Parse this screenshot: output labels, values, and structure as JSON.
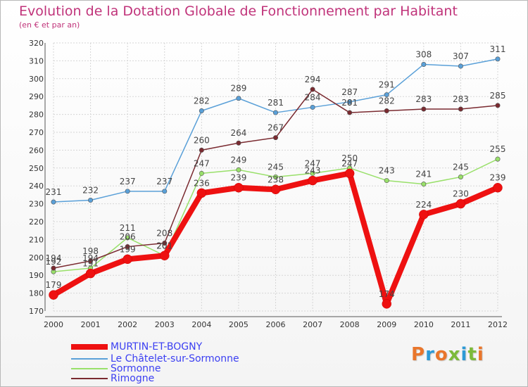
{
  "header": {
    "title": "Evolution de la Dotation Globale de Fonctionnement par Habitant",
    "subtitle": "(en € et par an)"
  },
  "logo": {
    "text": "Proxiti",
    "colors": [
      "#e9762b",
      "#2d9ad6",
      "#e9762b",
      "#7cba3a",
      "#2d9ad6",
      "#7cba3a",
      "#e9762b"
    ]
  },
  "chart_data": {
    "type": "line",
    "x": [
      "2000",
      "2001",
      "2002",
      "2003",
      "2004",
      "2005",
      "2006",
      "2007",
      "2008",
      "2009",
      "2010",
      "2011",
      "2012"
    ],
    "ylim": [
      170,
      320
    ],
    "yticks": [
      "170",
      "180",
      "190",
      "200",
      "210",
      "220",
      "230",
      "240",
      "250",
      "260",
      "270",
      "280",
      "290",
      "300",
      "310",
      "320"
    ],
    "grid": true,
    "legend": "bottom-left",
    "series": [
      {
        "name": "MURTIN-ET-BOGNY",
        "color": "#ee1111",
        "values": [
          179,
          191,
          199,
          201,
          236,
          239,
          238,
          243,
          247,
          174,
          224,
          230,
          239
        ],
        "labels": [
          "179",
          "191",
          "199",
          "201",
          "236",
          "239",
          "238",
          "243",
          "247",
          "174",
          "224",
          "230",
          "239"
        ]
      },
      {
        "name": "Le Châtelet-sur-Sormonne",
        "color": "#5aa0d8",
        "values": [
          231,
          232,
          237,
          237,
          282,
          289,
          281,
          284,
          287,
          291,
          308,
          307,
          311
        ],
        "labels": [
          "231",
          "232",
          "237",
          "237",
          "282",
          "289",
          "281",
          "284",
          "287",
          "291",
          "308",
          "307",
          "311"
        ]
      },
      {
        "name": "Sormonne",
        "color": "#99e06a",
        "values": [
          192,
          194,
          211,
          201,
          247,
          249,
          245,
          247,
          250,
          243,
          241,
          245,
          255
        ],
        "labels": [
          "192",
          "194",
          "211",
          "201",
          "247",
          "249",
          "245",
          "247",
          "250",
          "243",
          "241",
          "245",
          "255"
        ]
      },
      {
        "name": "Rimogne",
        "color": "#7a2a30",
        "values": [
          194,
          198,
          206,
          208,
          260,
          264,
          267,
          294,
          281,
          282,
          283,
          283,
          285
        ],
        "labels": [
          "194",
          "198",
          "206",
          "208",
          "260",
          "264",
          "267",
          "294",
          "281",
          "282",
          "283",
          "283",
          "285"
        ]
      }
    ]
  }
}
